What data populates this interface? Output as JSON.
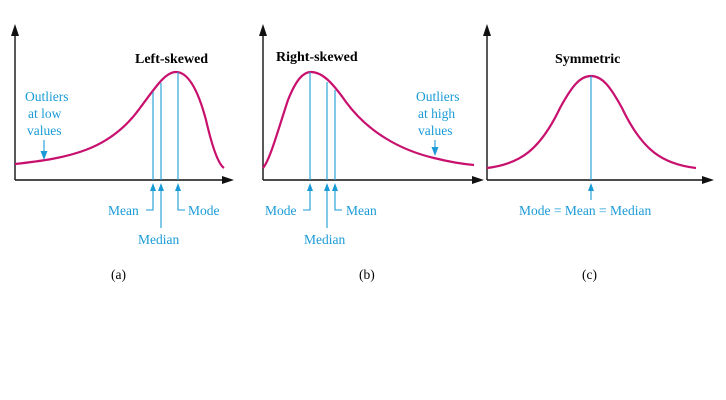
{
  "panels": [
    {
      "id": "a",
      "title": "Left-skewed",
      "caption": "(a)",
      "outlier_note": [
        "Outliers",
        "at low",
        "values"
      ],
      "labels": {
        "mean": "Mean",
        "median": "Median",
        "mode": "Mode"
      }
    },
    {
      "id": "b",
      "title": "Right-skewed",
      "caption": "(b)",
      "outlier_note": [
        "Outliers",
        "at high",
        "values"
      ],
      "labels": {
        "mode": "Mode",
        "median": "Median",
        "mean": "Mean"
      }
    },
    {
      "id": "c",
      "title": "Symmetric",
      "caption": "(c)",
      "labels": {
        "combined": "Mode = Mean = Median"
      }
    }
  ],
  "colors": {
    "curve": "#c8106e",
    "annotation": "#1a9bd7",
    "axis": "#111111"
  }
}
